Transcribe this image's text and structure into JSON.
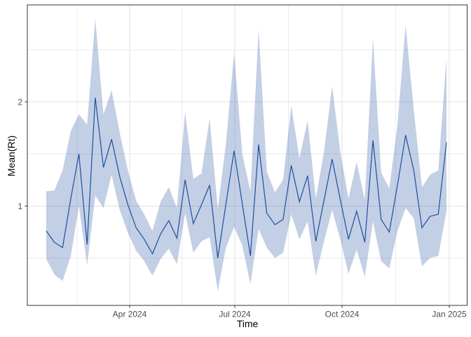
{
  "figure": {
    "xlabel": "Time",
    "ylabel": "Mean(Rt)"
  },
  "chart_data": {
    "type": "line",
    "title": "",
    "xlabel": "Time",
    "ylabel": "Mean(Rt)",
    "legend_position": "none",
    "grid": true,
    "x_tick_labels": [
      "Apr 2024",
      "Jul 2024",
      "Oct 2024",
      "Jan 2025"
    ],
    "y_tick_values": [
      1,
      2
    ],
    "y_tick_labels": [
      "1",
      "2"
    ],
    "y_minor_values": [
      0.5,
      1.5,
      2.5
    ],
    "ylim": [
      0.045,
      2.93
    ],
    "line_color": "#1f4e9e",
    "ribbon_color": "#1f4e9e",
    "ribbon_opacity": 0.27,
    "grid_major_color": "#e2e2e2",
    "grid_minor_color": "#ebebeb",
    "panel_border_color": "#343434",
    "tick_label_color": "#4d4d4d",
    "x": [
      "2024-01-21",
      "2024-01-28",
      "2024-02-04",
      "2024-02-11",
      "2024-02-18",
      "2024-02-25",
      "2024-03-03",
      "2024-03-10",
      "2024-03-17",
      "2024-03-24",
      "2024-03-31",
      "2024-04-07",
      "2024-04-14",
      "2024-04-21",
      "2024-04-28",
      "2024-05-05",
      "2024-05-12",
      "2024-05-19",
      "2024-05-26",
      "2024-06-02",
      "2024-06-09",
      "2024-06-16",
      "2024-06-23",
      "2024-06-30",
      "2024-07-07",
      "2024-07-14",
      "2024-07-21",
      "2024-07-28",
      "2024-08-04",
      "2024-08-11",
      "2024-08-18",
      "2024-08-25",
      "2024-09-01",
      "2024-09-08",
      "2024-09-15",
      "2024-09-22",
      "2024-09-29",
      "2024-10-06",
      "2024-10-13",
      "2024-10-20",
      "2024-10-27",
      "2024-11-03",
      "2024-11-10",
      "2024-11-17",
      "2024-11-24",
      "2024-12-01",
      "2024-12-08",
      "2024-12-15",
      "2024-12-22",
      "2024-12-29"
    ],
    "series": [
      {
        "name": "Mean(Rt)",
        "values": [
          0.76,
          0.65,
          0.6,
          1.07,
          1.5,
          0.63,
          2.04,
          1.37,
          1.64,
          1.28,
          1.01,
          0.79,
          0.68,
          0.54,
          0.73,
          0.86,
          0.69,
          1.25,
          0.83,
          1.01,
          1.2,
          0.5,
          1.02,
          1.53,
          1.02,
          0.52,
          1.59,
          0.93,
          0.82,
          0.87,
          1.39,
          1.04,
          1.29,
          0.66,
          1.05,
          1.45,
          1.06,
          0.68,
          0.95,
          0.65,
          1.63,
          0.87,
          0.75,
          1.2,
          1.68,
          1.34,
          0.79,
          0.9,
          0.92,
          1.61
        ]
      }
    ],
    "band": {
      "name": "credible-interval",
      "lower": [
        0.49,
        0.34,
        0.28,
        0.52,
        1.0,
        0.43,
        1.1,
        0.98,
        1.3,
        0.96,
        0.74,
        0.57,
        0.47,
        0.33,
        0.49,
        0.59,
        0.44,
        0.93,
        0.55,
        0.66,
        0.7,
        0.18,
        0.6,
        0.8,
        0.62,
        0.25,
        0.78,
        0.6,
        0.5,
        0.55,
        0.92,
        0.68,
        0.85,
        0.33,
        0.66,
        0.96,
        0.68,
        0.35,
        0.58,
        0.32,
        0.85,
        0.47,
        0.4,
        0.76,
        0.98,
        0.88,
        0.42,
        0.5,
        0.52,
        0.95
      ],
      "upper": [
        1.14,
        1.15,
        1.34,
        1.72,
        1.88,
        1.78,
        2.8,
        1.88,
        2.11,
        1.7,
        1.34,
        1.05,
        0.92,
        0.76,
        1.04,
        1.18,
        0.98,
        1.9,
        1.26,
        1.31,
        1.84,
        0.97,
        1.6,
        2.47,
        1.5,
        1.14,
        2.7,
        1.33,
        1.13,
        1.25,
        1.96,
        1.46,
        1.82,
        1.07,
        1.52,
        2.15,
        1.52,
        1.07,
        1.42,
        1.06,
        2.61,
        1.32,
        1.17,
        1.78,
        2.74,
        1.92,
        1.18,
        1.3,
        1.34,
        2.42
      ]
    }
  }
}
